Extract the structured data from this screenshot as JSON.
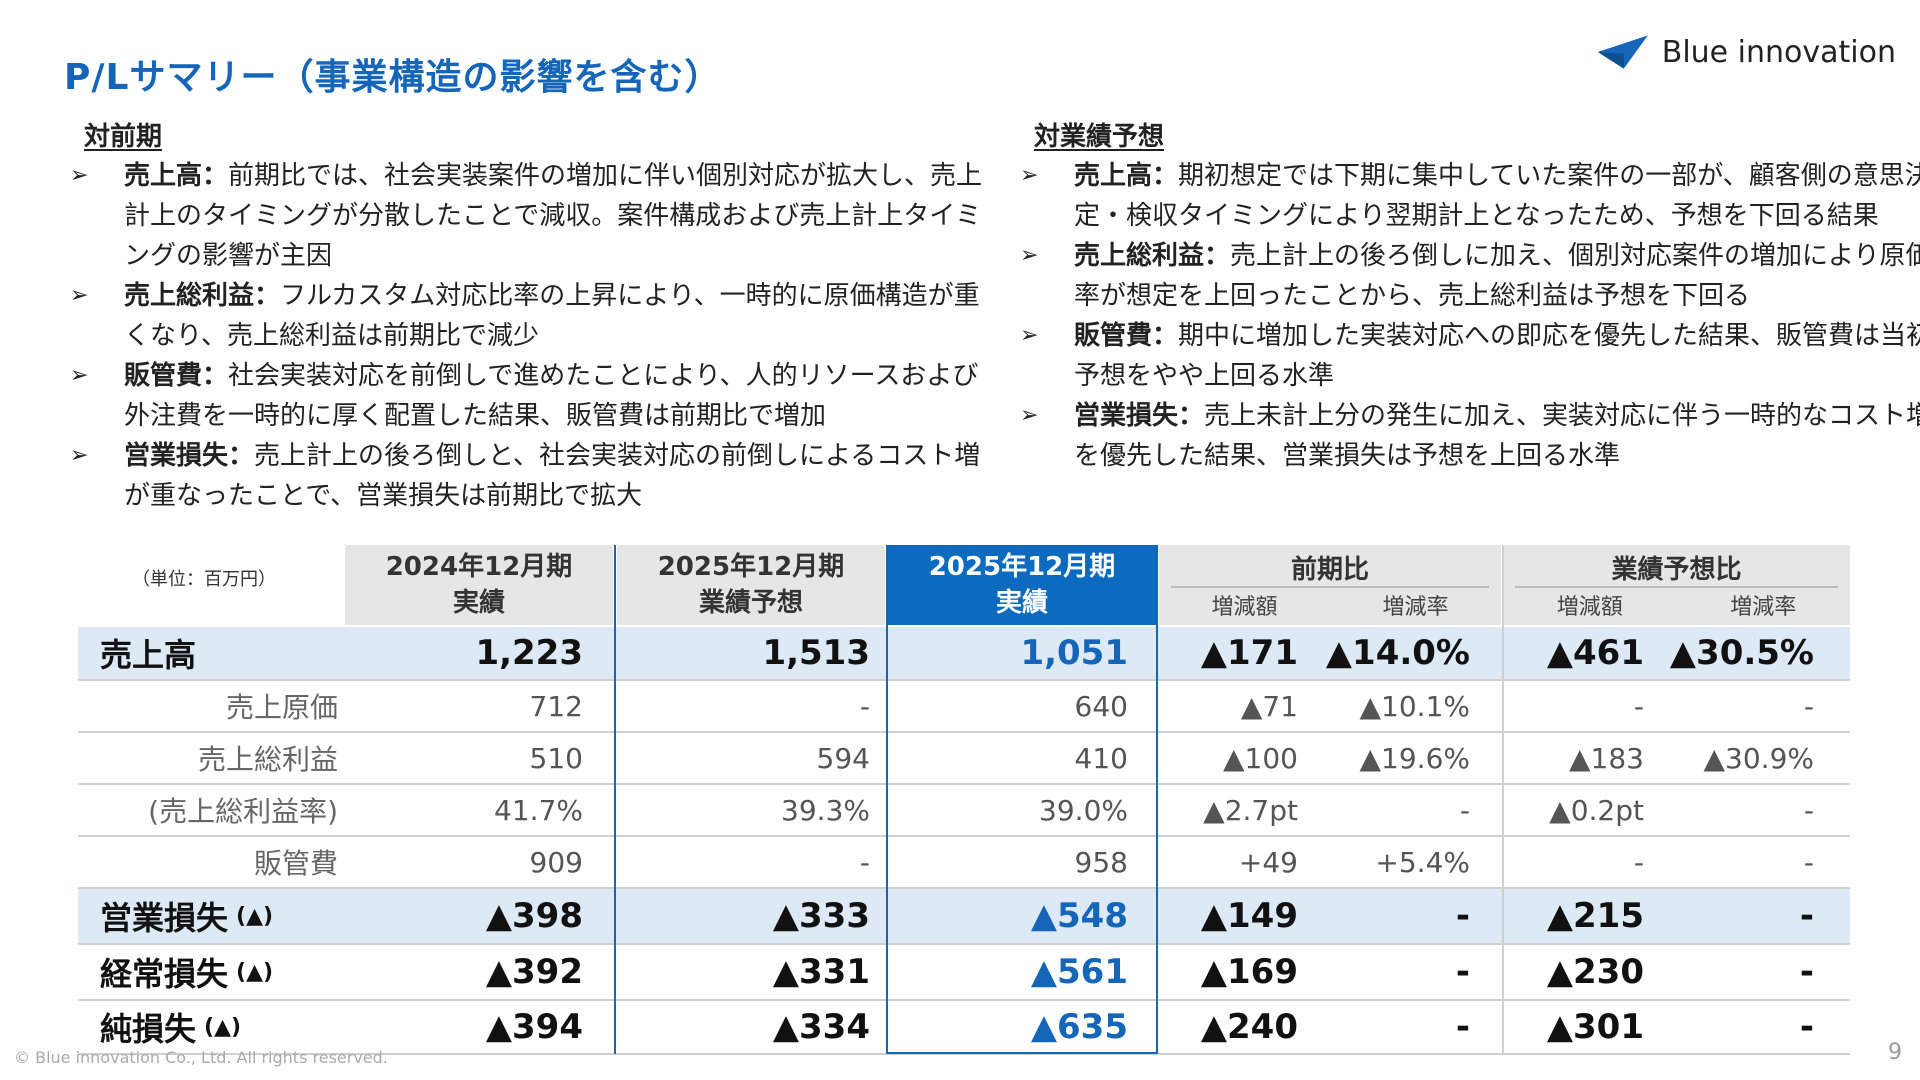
{
  "title": "P/Lサマリー（事業構造の影響を含む）",
  "logo": {
    "text": "Blue innovation",
    "icon": "blue-triangle-logo-icon"
  },
  "left_section": {
    "heading": "対前期",
    "items": [
      {
        "label": "売上高：",
        "text": "前期比では、社会実装案件の増加に伴い個別対応が拡大し、売上計上のタイミングが分散したことで減収。案件構成および売上計上タイミングの影響が主因"
      },
      {
        "label": "売上総利益：",
        "text": "フルカスタム対応比率の上昇により、一時的に原価構造が重くなり、売上総利益は前期比で減少"
      },
      {
        "label": "販管費：",
        "text": "社会実装対応を前倒しで進めたことにより、人的リソースおよび外注費を一時的に厚く配置した結果、販管費は前期比で増加"
      },
      {
        "label": "営業損失：",
        "text": "売上計上の後ろ倒しと、社会実装対応の前倒しによるコスト増が重なったことで、営業損失は前期比で拡大"
      }
    ]
  },
  "right_section": {
    "heading": "対業績予想",
    "items": [
      {
        "label": "売上高：",
        "text": "期初想定では下期に集中していた案件の一部が、顧客側の意思決定・検収タイミングにより翌期計上となったため、予想を下回る結果"
      },
      {
        "label": "売上総利益：",
        "text": "売上計上の後ろ倒しに加え、個別対応案件の増加により原価率が想定を上回ったことから、売上総利益は予想を下回る"
      },
      {
        "label": "販管費：",
        "text": "期中に増加した実装対応への即応を優先した結果、販管費は当初予想をやや上回る水準"
      },
      {
        "label": "営業損失：",
        "text": "売上未計上分の発生に加え、実装対応に伴う一時的なコスト増を優先した結果、営業損失は予想を上回る水準"
      }
    ]
  },
  "bullet_glyph": "➢",
  "table": {
    "unit": "（単位：百万円）",
    "col1": {
      "line1": "2024年12月期",
      "line2": "実績"
    },
    "col2": {
      "line1": "2025年12月期",
      "line2": "業績予想"
    },
    "col3": {
      "line1": "2025年12月期",
      "line2": "実績"
    },
    "group1": {
      "title": "前期比",
      "sub1": "増減額",
      "sub2": "増減率"
    },
    "group2": {
      "title": "業績予想比",
      "sub1": "増減額",
      "sub2": "増減率"
    },
    "rows": [
      {
        "label": "売上高",
        "mark": "",
        "v": [
          "1,223",
          "1,513",
          "1,051",
          "▲171",
          "▲14.0%",
          "▲461",
          "▲30.5%"
        ]
      },
      {
        "label": "売上原価",
        "mark": "",
        "v": [
          "712",
          "-",
          "640",
          "▲71",
          "▲10.1%",
          "-",
          "-"
        ]
      },
      {
        "label": "売上総利益",
        "mark": "",
        "v": [
          "510",
          "594",
          "410",
          "▲100",
          "▲19.6%",
          "▲183",
          "▲30.9%"
        ]
      },
      {
        "label": "(売上総利益率)",
        "mark": "",
        "v": [
          "41.7%",
          "39.3%",
          "39.0%",
          "▲2.7pt",
          "-",
          "▲0.2pt",
          "-"
        ]
      },
      {
        "label": "販管費",
        "mark": "",
        "v": [
          "909",
          "-",
          "958",
          "+49",
          "+5.4%",
          "-",
          "-"
        ]
      },
      {
        "label": "営業損失",
        "mark": "(▲)",
        "v": [
          "▲398",
          "▲333",
          "▲548",
          "▲149",
          "-",
          "▲215",
          "-"
        ]
      },
      {
        "label": "経常損失",
        "mark": "(▲)",
        "v": [
          "▲392",
          "▲331",
          "▲561",
          "▲169",
          "-",
          "▲230",
          "-"
        ]
      },
      {
        "label": "純損失",
        "mark": "(▲)",
        "v": [
          "▲394",
          "▲334",
          "▲635",
          "▲240",
          "-",
          "▲301",
          "-"
        ]
      }
    ]
  },
  "footer": "© Blue innovation Co., Ltd. All rights reserved.",
  "page_number": "9"
}
